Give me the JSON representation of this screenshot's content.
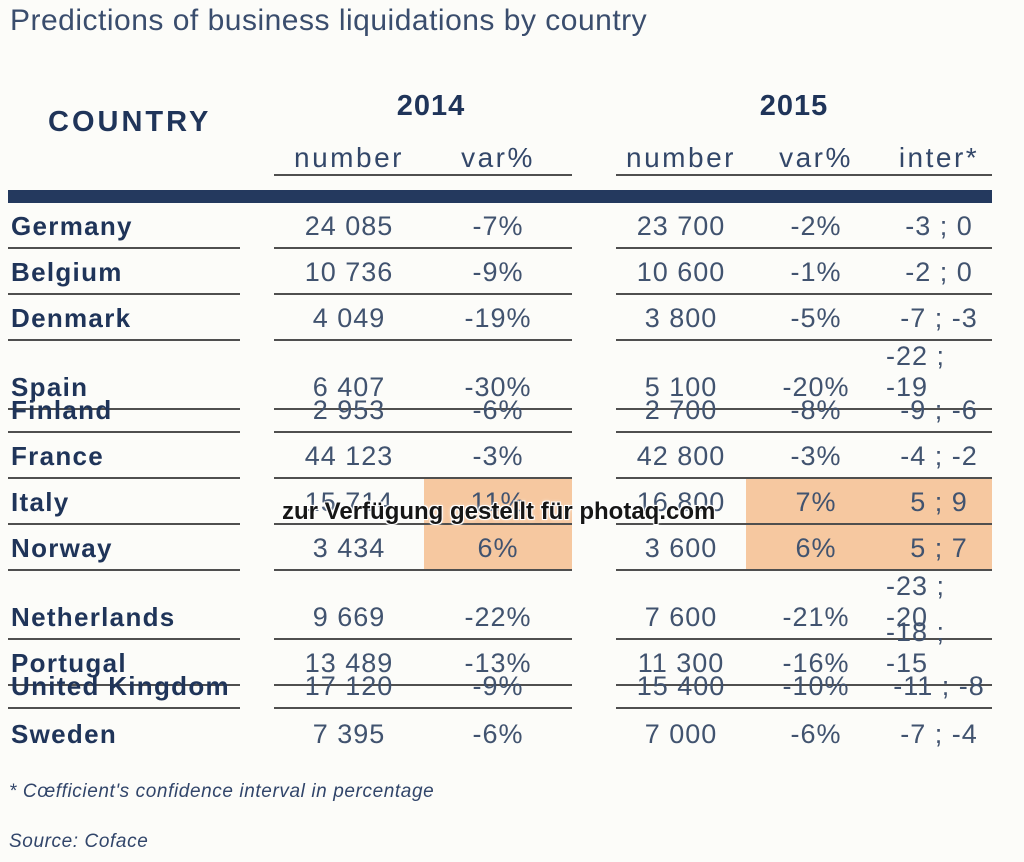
{
  "title": "Predictions of business liquidations by country",
  "colors": {
    "navy_bar": "#24395e",
    "heading_text": "#1f3459",
    "number_text": "#41536f",
    "divider_line": "#4f4f4f",
    "highlight": "#f6c8a0",
    "background": "#fcfcf9"
  },
  "header": {
    "country_label": "COUNTRY",
    "year_2014": "2014",
    "year_2015": "2015",
    "sub_2014_number": "number",
    "sub_2014_var": "var%",
    "sub_2015_number": "number",
    "sub_2015_var": "var%",
    "sub_2015_inter": "inter*"
  },
  "table": {
    "rows": [
      {
        "country": "Germany",
        "n2014": "24 085",
        "v2014": "-7%",
        "n2015": "23 700",
        "v2015": "-2%",
        "inter": "-3 ; 0",
        "highlight": false
      },
      {
        "country": "Belgium",
        "n2014": "10 736",
        "v2014": "-9%",
        "n2015": "10 600",
        "v2015": "-1%",
        "inter": "-2 ; 0",
        "highlight": false
      },
      {
        "country": "Denmark",
        "n2014": "4 049",
        "v2014": "-19%",
        "n2015": "3 800",
        "v2015": "-5%",
        "inter": "-7 ; -3",
        "highlight": false
      },
      {
        "country": "Spain",
        "n2014": "6 407",
        "v2014": "-30%",
        "n2015": "5 100",
        "v2015": "-20%",
        "inter": "-22 ; -19",
        "highlight": false
      },
      {
        "country": "Finland",
        "n2014": "2 953",
        "v2014": "-6%",
        "n2015": "2 700",
        "v2015": "-8%",
        "inter": "-9 ; -6",
        "highlight": false
      },
      {
        "country": "France",
        "n2014": "44 123",
        "v2014": "-3%",
        "n2015": "42 800",
        "v2015": "-3%",
        "inter": "-4 ; -2",
        "highlight": false
      },
      {
        "country": "Italy",
        "n2014": "15 714",
        "v2014": "11%",
        "n2015": "16 800",
        "v2015": "7%",
        "inter": "5 ; 9",
        "highlight": true
      },
      {
        "country": "Norway",
        "n2014": "3 434",
        "v2014": "6%",
        "n2015": "3 600",
        "v2015": "6%",
        "inter": "5 ; 7",
        "highlight": true
      },
      {
        "country": "Netherlands",
        "n2014": "9 669",
        "v2014": "-22%",
        "n2015": "7 600",
        "v2015": "-21%",
        "inter": "-23 ; -20",
        "highlight": false
      },
      {
        "country": "Portugal",
        "n2014": "13 489",
        "v2014": "-13%",
        "n2015": "11 300",
        "v2015": "-16%",
        "inter": "-18 ; -15",
        "highlight": false
      },
      {
        "country": "United Kingdom",
        "n2014": "17 120",
        "v2014": "-9%",
        "n2015": "15 400",
        "v2015": "-10%",
        "inter": "-11 ; -8",
        "highlight": false
      },
      {
        "country": "Sweden",
        "n2014": "7 395",
        "v2014": "-6%",
        "n2015": "7 000",
        "v2015": "-6%",
        "inter": "-7 ; -4",
        "highlight": false
      }
    ]
  },
  "watermark": "zur Verfügung gestellt für photaq.com",
  "footnote": "* Cœfficient's confidence interval in percentage",
  "source": "Source: Coface",
  "chart_data": {
    "type": "table",
    "title": "Predictions of business liquidations by country",
    "columns": [
      "COUNTRY",
      "2014 number",
      "2014 var%",
      "2015 number",
      "2015 var%",
      "2015 inter*"
    ],
    "rows": [
      [
        "Germany",
        24085,
        "-7%",
        23700,
        "-2%",
        "-3 ; 0"
      ],
      [
        "Belgium",
        10736,
        "-9%",
        10600,
        "-1%",
        "-2 ; 0"
      ],
      [
        "Denmark",
        4049,
        "-19%",
        3800,
        "-5%",
        "-7 ; -3"
      ],
      [
        "Spain",
        6407,
        "-30%",
        5100,
        "-20%",
        "-22 ; -19"
      ],
      [
        "Finland",
        2953,
        "-6%",
        2700,
        "-8%",
        "-9 ; -6"
      ],
      [
        "France",
        44123,
        "-3%",
        42800,
        "-3%",
        "-4 ; -2"
      ],
      [
        "Italy",
        15714,
        "11%",
        16800,
        "7%",
        "5 ; 9"
      ],
      [
        "Norway",
        3434,
        "6%",
        3600,
        "6%",
        "5 ; 7"
      ],
      [
        "Netherlands",
        9669,
        "-22%",
        7600,
        "-21%",
        "-23 ; -20"
      ],
      [
        "Portugal",
        13489,
        "-13%",
        11300,
        "-16%",
        "-18 ; -15"
      ],
      [
        "United Kingdom",
        17120,
        "-9%",
        15400,
        "-10%",
        "-11 ; -8"
      ],
      [
        "Sweden",
        7395,
        "-6%",
        7000,
        "-6%",
        "-7 ; -4"
      ]
    ],
    "highlighted_rows": [
      "Italy",
      "Norway"
    ],
    "highlighted_cells_note": "Positive growth cells (var% 2014, var% 2015, inter*) shaded orange for Italy and Norway",
    "footnote": "* Cœfficient's confidence interval in percentage",
    "source": "Source: Coface"
  }
}
